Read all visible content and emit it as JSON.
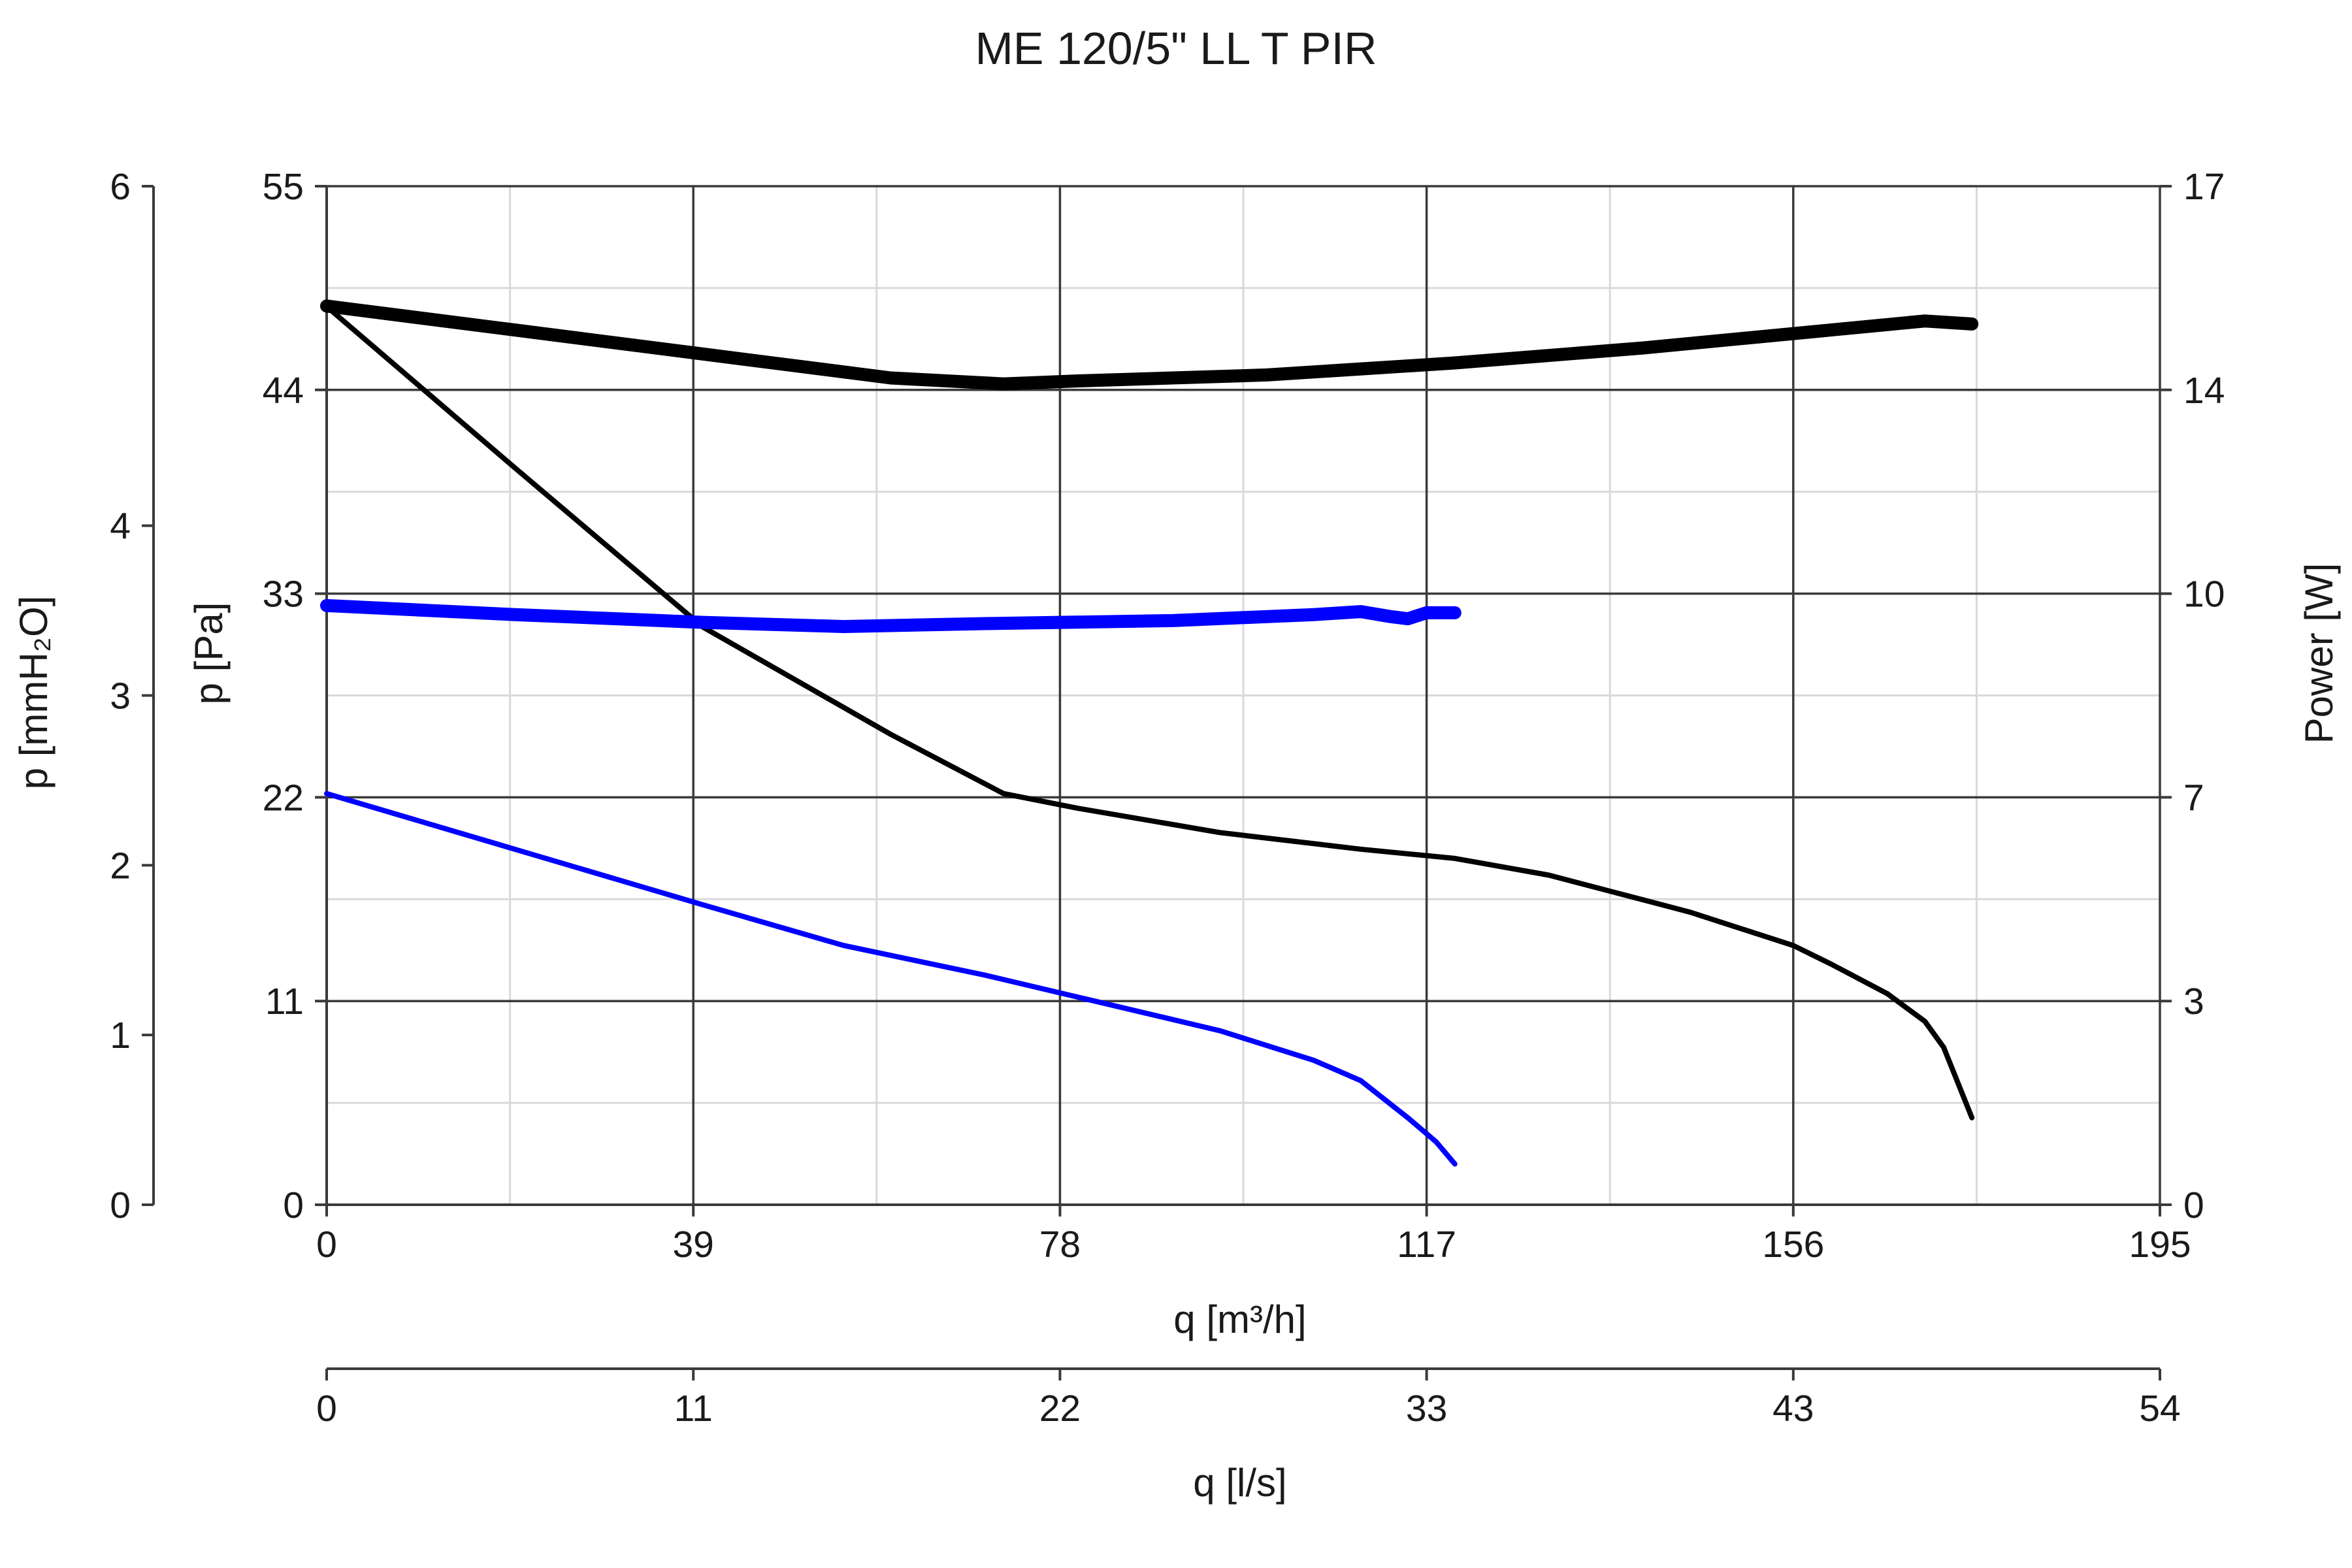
{
  "chart_data": {
    "type": "line",
    "title": "ME 120/5\" LL T PIR",
    "xlabel": "q [m³/h]",
    "xlabel2": "q [l/s]",
    "ylabel": "p [Pa]",
    "ylabel2": "p [mmH₂O]",
    "ylabel_right": "Power [W]",
    "xlim": [
      0,
      195
    ],
    "ylim": [
      0,
      55
    ],
    "ylim_mmh2o": [
      0,
      6
    ],
    "ylim_power": [
      0,
      17
    ],
    "grid": true,
    "x_ticks": [
      "0",
      "39",
      "78",
      "117",
      "156",
      "195"
    ],
    "x2_ticks": [
      "0",
      "11",
      "22",
      "33",
      "43",
      "54"
    ],
    "y_ticks": [
      "0",
      "11",
      "22",
      "33",
      "44",
      "55"
    ],
    "y2_ticks": [
      "0",
      "1",
      "2",
      "3",
      "4",
      "6"
    ],
    "y3_ticks": [
      "0",
      "3",
      "7",
      "10",
      "14",
      "17"
    ],
    "series": [
      {
        "axis": "pressure",
        "color": "#000000",
        "width": "thin",
        "x": [
          0,
          20,
          40,
          60,
          72,
          80,
          95,
          110,
          120,
          130,
          145,
          156,
          160,
          166,
          170,
          172,
          175
        ],
        "y": [
          48.5,
          39.8,
          31.2,
          25.4,
          22.2,
          21.4,
          20.1,
          19.2,
          18.7,
          17.8,
          15.8,
          14.0,
          13.0,
          11.4,
          9.9,
          8.5,
          4.7
        ]
      },
      {
        "axis": "pressure",
        "color": "#0000ff",
        "width": "thin",
        "x": [
          0,
          20,
          40,
          55,
          70,
          80,
          95,
          105,
          110,
          115,
          118,
          120
        ],
        "y": [
          22.2,
          19.2,
          16.2,
          14.0,
          12.4,
          11.2,
          9.4,
          7.8,
          6.7,
          4.7,
          3.4,
          2.2
        ]
      },
      {
        "axis": "power",
        "color": "#000000",
        "width": "thick",
        "x": [
          0,
          20,
          40,
          60,
          72,
          80,
          100,
          120,
          140,
          160,
          170,
          175
        ],
        "y": [
          15.0,
          14.6,
          14.2,
          13.8,
          13.7,
          13.75,
          13.85,
          14.05,
          14.3,
          14.6,
          14.75,
          14.7
        ]
      },
      {
        "axis": "power",
        "color": "#0000ff",
        "width": "thick",
        "x": [
          0,
          20,
          40,
          55,
          70,
          90,
          105,
          110,
          113,
          115,
          117,
          120
        ],
        "y": [
          10.0,
          9.85,
          9.72,
          9.65,
          9.7,
          9.75,
          9.85,
          9.9,
          9.82,
          9.78,
          9.88,
          9.88
        ]
      }
    ]
  }
}
